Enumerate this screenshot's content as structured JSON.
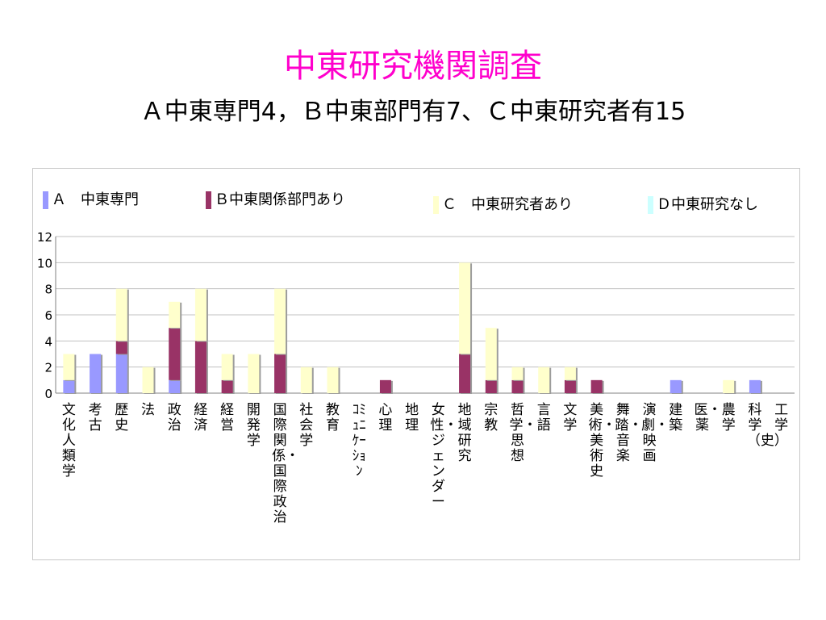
{
  "title": "中東研究機関調査",
  "subtitle": "Ａ中東専門4，Ｂ中東部門有7、Ｃ中東研究者有15",
  "legend": [
    {
      "label": "Ａ　中東専門",
      "color": "#9999ff"
    },
    {
      "label": "Ｂ中東関係部門あり",
      "color": "#993366"
    },
    {
      "label": "Ｃ　中東研究者あり",
      "color": "#ffffcc"
    },
    {
      "label": "Ｄ中東研究なし",
      "color": "#ccffff"
    }
  ],
  "chart_data": {
    "type": "bar",
    "stacked": true,
    "categories": [
      "文化人類学",
      "考古",
      "歴史",
      "法",
      "政治",
      "経済",
      "経営",
      "開発学",
      "国際関係・国際政治",
      "社会学",
      "教育",
      "ｺﾐｭﾆｹｰｼｮﾝ",
      "心理",
      "地理",
      "女性・ジェンダー",
      "地域研究",
      "宗教",
      "哲学・思想",
      "言語",
      "文学",
      "美術・美術史",
      "舞踏・音楽",
      "演劇・映画",
      "建築",
      "医・薬",
      "農学",
      "科学（史）",
      "工学"
    ],
    "series": [
      {
        "name": "Ａ　中東専門",
        "color": "#9999ff",
        "values": [
          1,
          3,
          3,
          0,
          1,
          0,
          0,
          0,
          0,
          0,
          0,
          0,
          0,
          0,
          0,
          0,
          0,
          0,
          0,
          0,
          0,
          0,
          0,
          1,
          0,
          0,
          1,
          0
        ]
      },
      {
        "name": "Ｂ中東関係部門あり",
        "color": "#993366",
        "values": [
          0,
          0,
          1,
          0,
          4,
          4,
          1,
          0,
          3,
          0,
          0,
          0,
          1,
          0,
          0,
          3,
          1,
          1,
          0,
          1,
          1,
          0,
          0,
          0,
          0,
          0,
          0,
          0
        ]
      },
      {
        "name": "Ｃ　中東研究者あり",
        "color": "#ffffcc",
        "values": [
          2,
          0,
          4,
          2,
          2,
          4,
          2,
          3,
          5,
          2,
          2,
          0,
          0,
          0,
          0,
          7,
          4,
          1,
          2,
          1,
          0,
          0,
          0,
          0,
          0,
          1,
          0,
          0
        ]
      },
      {
        "name": "Ｄ中東研究なし",
        "color": "#ccffff",
        "values": [
          0,
          0,
          0,
          0,
          0,
          0,
          0,
          0,
          0,
          0,
          0,
          0,
          0,
          0,
          0,
          0,
          0,
          0,
          0,
          0,
          0,
          0,
          0,
          0,
          0,
          0,
          0,
          0
        ]
      }
    ],
    "ylim": [
      0,
      12
    ],
    "yticks": [
      "0",
      "2",
      "4",
      "6",
      "8",
      "10",
      "12"
    ],
    "grid": true,
    "legend_position": "top"
  }
}
